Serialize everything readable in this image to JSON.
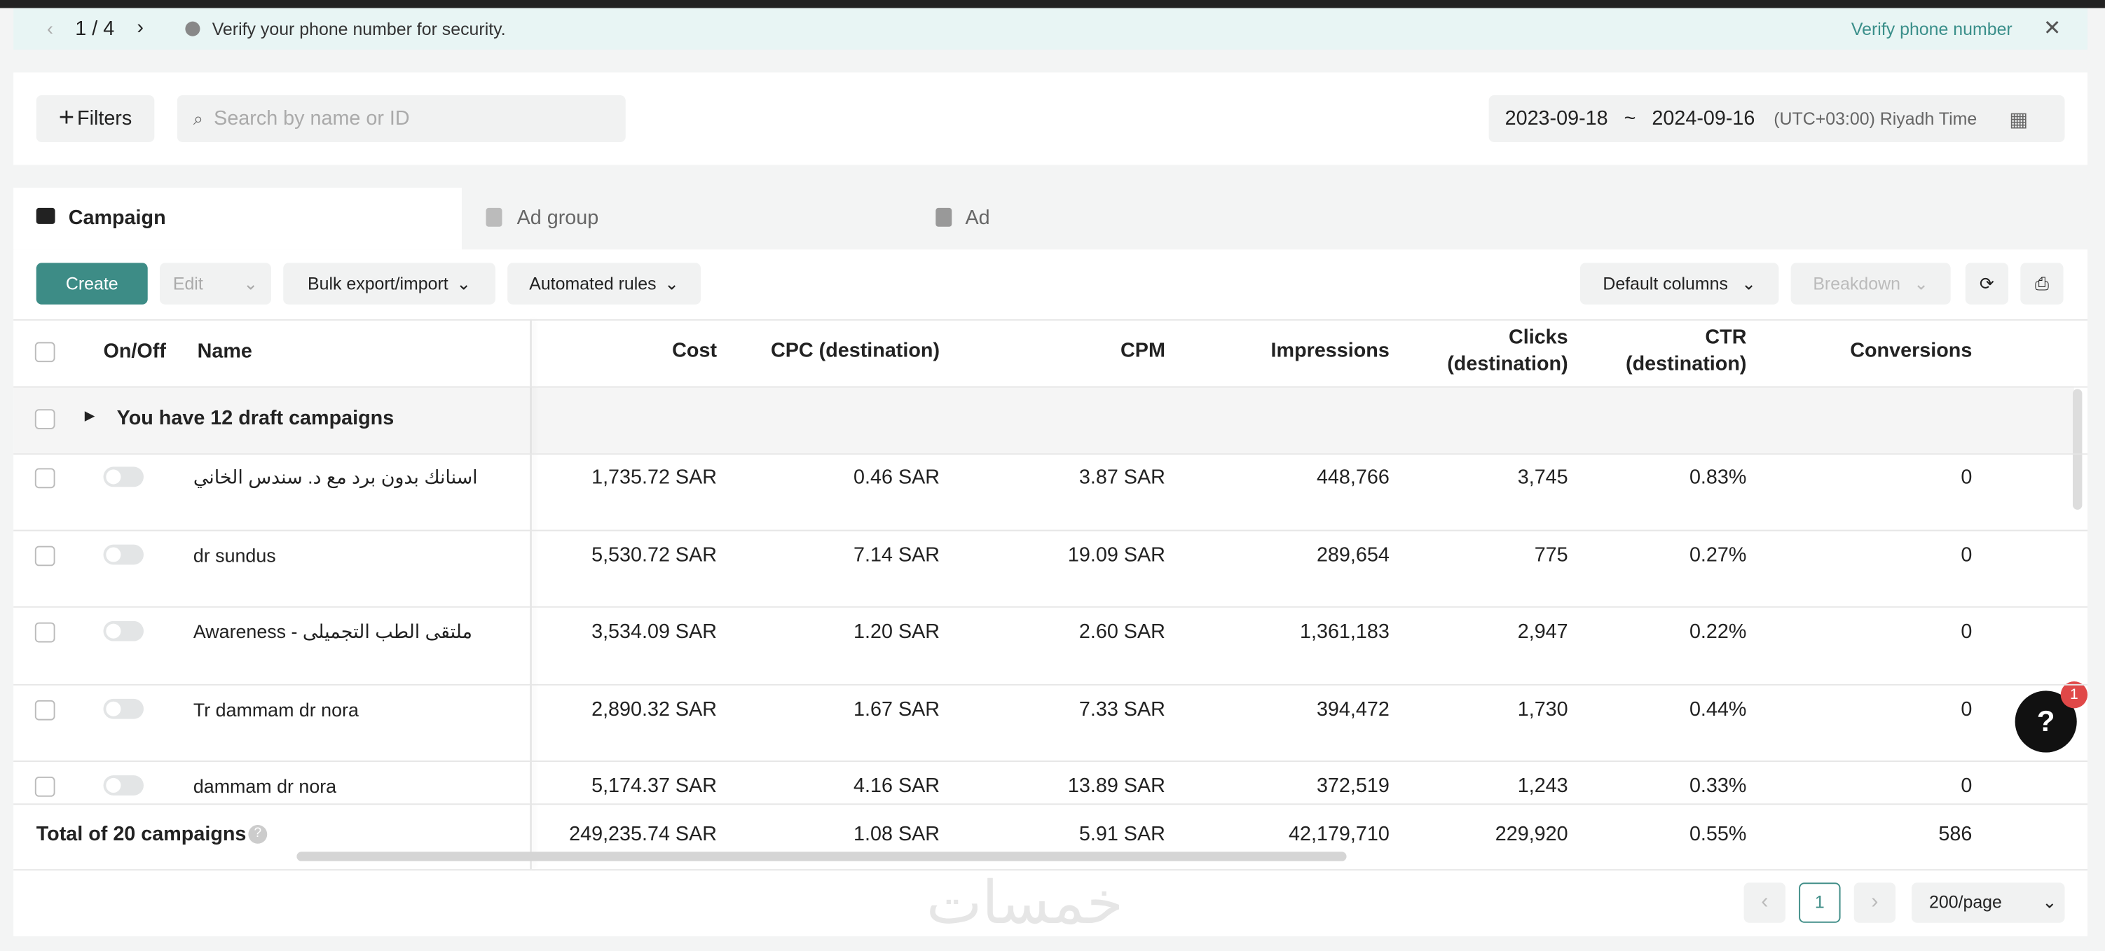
{
  "banner": {
    "pager": "1 / 4",
    "message": "Verify your phone number for security.",
    "action": "Verify phone number"
  },
  "toolbar": {
    "filters": "Filters",
    "search_placeholder": "Search by name or ID",
    "date_start": "2023-09-18",
    "date_sep": "~",
    "date_end": "2024-09-16",
    "timezone": "(UTC+03:00) Riyadh Time"
  },
  "tabs": [
    "Campaign",
    "Ad group",
    "Ad"
  ],
  "actions": {
    "create": "Create",
    "edit": "Edit",
    "bulk": "Bulk export/import",
    "rules": "Automated rules",
    "default_columns": "Default columns",
    "breakdown": "Breakdown"
  },
  "table": {
    "columns": [
      "On/Off",
      "Name",
      "Cost",
      "CPC (destination)",
      "CPM",
      "Impressions",
      "Clicks (destination)",
      "CTR (destination)",
      "Conversions"
    ],
    "draft_row": "You have 12 draft campaigns",
    "rows": [
      [
        "اسنانك بدون برد مع د. سندس الخاني",
        "1,735.72 SAR",
        "0.46 SAR",
        "3.87 SAR",
        "448,766",
        "3,745",
        "0.83%",
        "0"
      ],
      [
        "dr sundus",
        "5,530.72 SAR",
        "7.14 SAR",
        "19.09 SAR",
        "289,654",
        "775",
        "0.27%",
        "0"
      ],
      [
        "Awareness - ملتقى الطب التجميلى",
        "3,534.09 SAR",
        "1.20 SAR",
        "2.60 SAR",
        "1,361,183",
        "2,947",
        "0.22%",
        "0"
      ],
      [
        "Tr dammam dr nora",
        "2,890.32 SAR",
        "1.67 SAR",
        "7.33 SAR",
        "394,472",
        "1,730",
        "0.44%",
        "0"
      ],
      [
        "dammam dr nora",
        "5,174.37 SAR",
        "4.16 SAR",
        "13.89 SAR",
        "372,519",
        "1,243",
        "0.33%",
        "0"
      ]
    ],
    "total": [
      "Total of 20 campaigns",
      "249,235.74 SAR",
      "1.08 SAR",
      "5.91 SAR",
      "42,179,710",
      "229,920",
      "0.55%",
      "586"
    ]
  },
  "pagination": {
    "page": "1",
    "per_page": "200/page"
  },
  "help_badge": "1",
  "watermark": "خمسات"
}
